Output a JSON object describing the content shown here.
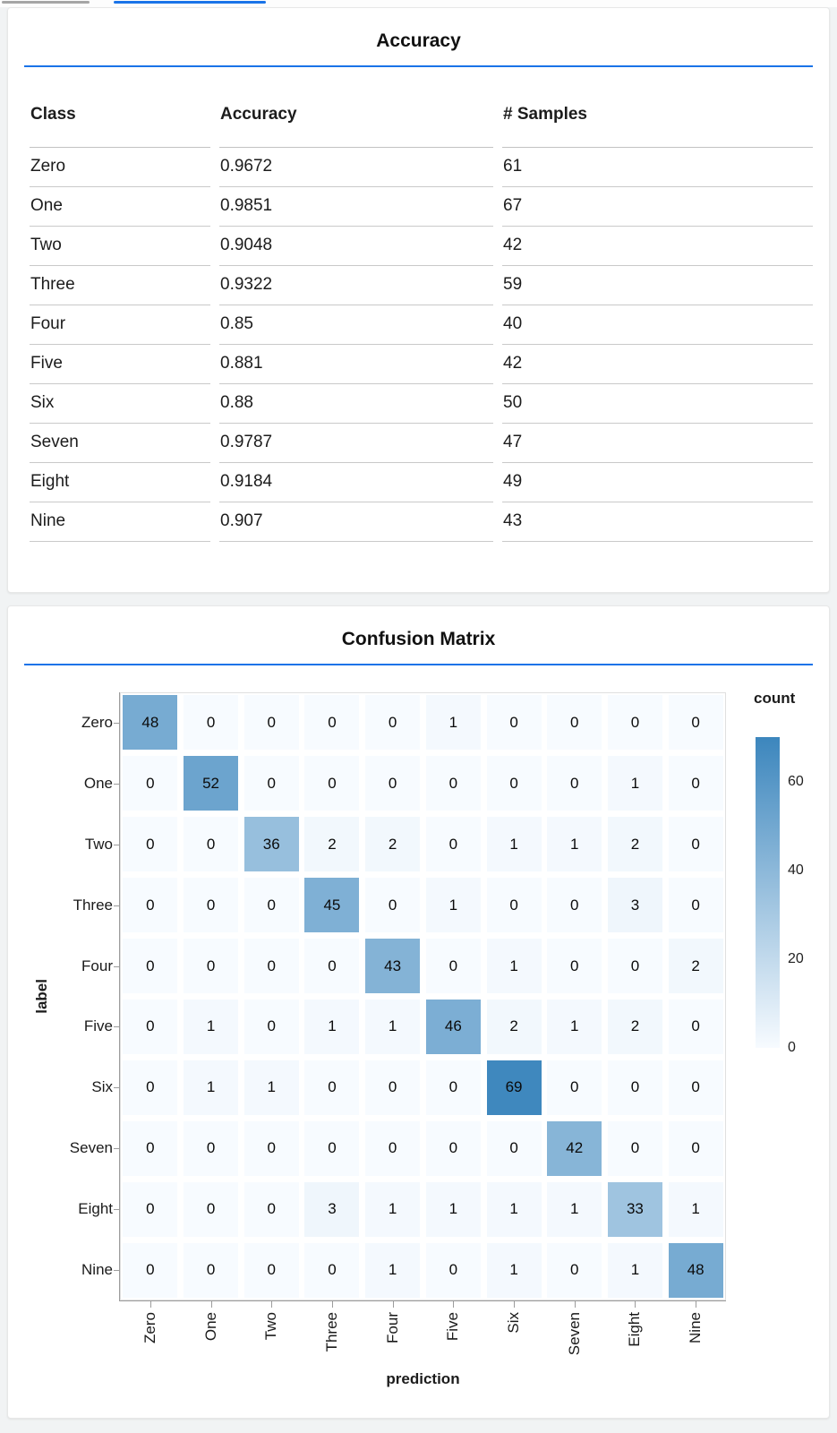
{
  "page": {
    "background": "#f1f3f4",
    "accent_blue": "#1a73e8",
    "tab_gray": "#a6a6a6"
  },
  "accuracy_panel": {
    "title": "Accuracy"
  },
  "confusion_panel": {
    "title": "Confusion Matrix"
  },
  "chart_data": [
    {
      "type": "table",
      "title": "Accuracy",
      "columns": [
        "Class",
        "Accuracy",
        "# Samples"
      ],
      "rows": [
        [
          "Zero",
          "0.9672",
          "61"
        ],
        [
          "One",
          "0.9851",
          "67"
        ],
        [
          "Two",
          "0.9048",
          "42"
        ],
        [
          "Three",
          "0.9322",
          "59"
        ],
        [
          "Four",
          "0.85",
          "40"
        ],
        [
          "Five",
          "0.881",
          "42"
        ],
        [
          "Six",
          "0.88",
          "50"
        ],
        [
          "Seven",
          "0.9787",
          "47"
        ],
        [
          "Eight",
          "0.9184",
          "49"
        ],
        [
          "Nine",
          "0.907",
          "43"
        ]
      ]
    },
    {
      "type": "heatmap",
      "title": "Confusion Matrix",
      "xlabel": "prediction",
      "ylabel": "label",
      "categories": [
        "Zero",
        "One",
        "Two",
        "Three",
        "Four",
        "Five",
        "Six",
        "Seven",
        "Eight",
        "Nine"
      ],
      "matrix": [
        [
          48,
          0,
          0,
          0,
          0,
          1,
          0,
          0,
          0,
          0
        ],
        [
          0,
          52,
          0,
          0,
          0,
          0,
          0,
          0,
          1,
          0
        ],
        [
          0,
          0,
          36,
          2,
          2,
          0,
          1,
          1,
          2,
          0
        ],
        [
          0,
          0,
          0,
          45,
          0,
          1,
          0,
          0,
          3,
          0
        ],
        [
          0,
          0,
          0,
          0,
          43,
          0,
          1,
          0,
          0,
          2
        ],
        [
          0,
          1,
          0,
          1,
          1,
          46,
          2,
          1,
          2,
          0
        ],
        [
          0,
          1,
          1,
          0,
          0,
          0,
          69,
          0,
          0,
          0
        ],
        [
          0,
          0,
          0,
          0,
          0,
          0,
          0,
          42,
          0,
          0
        ],
        [
          0,
          0,
          0,
          3,
          1,
          1,
          1,
          1,
          33,
          1
        ],
        [
          0,
          0,
          0,
          0,
          1,
          0,
          1,
          0,
          1,
          48
        ]
      ],
      "color_scale": {
        "scheme": "blues",
        "domain": [
          0,
          70
        ],
        "range": [
          "#f7fbff",
          "#3c86bd"
        ]
      },
      "legend": {
        "title": "count",
        "ticks": [
          0,
          20,
          40,
          60
        ],
        "position": "right"
      },
      "grid": false
    }
  ]
}
